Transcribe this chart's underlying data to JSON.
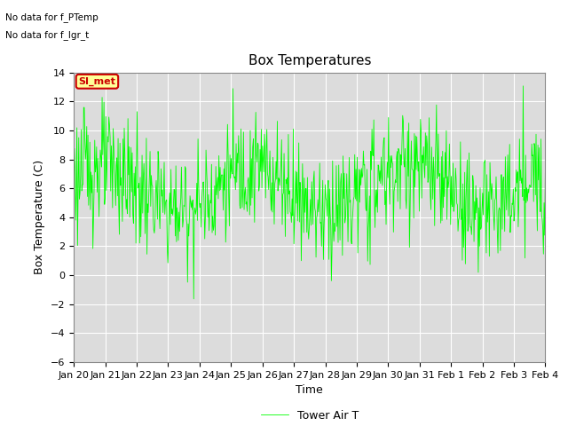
{
  "title": "Box Temperatures",
  "ylabel": "Box Temperature (C)",
  "xlabel": "Time",
  "ylim": [
    -6,
    14
  ],
  "yticks": [
    -6,
    -4,
    -2,
    0,
    2,
    4,
    6,
    8,
    10,
    12,
    14
  ],
  "xtick_labels": [
    "Jan 20",
    "Jan 21",
    "Jan 22",
    "Jan 23",
    "Jan 24",
    "Jan 25",
    "Jan 26",
    "Jan 27",
    "Jan 28",
    "Jan 29",
    "Jan 30",
    "Jan 31",
    "Feb 1",
    "Feb 2",
    "Feb 3",
    "Feb 4"
  ],
  "line_color": "#00FF00",
  "line_label": "Tower Air T",
  "annotation_text": "SI_met",
  "annotation_color": "#CC0000",
  "annotation_bg": "#FFFF99",
  "no_data_text1": "No data for f_PTemp",
  "no_data_text2": "No data for f_lgr_t",
  "plot_bg_color": "#DCDCDC",
  "title_fontsize": 11,
  "axis_fontsize": 9,
  "tick_fontsize": 8,
  "legend_fontsize": 9
}
